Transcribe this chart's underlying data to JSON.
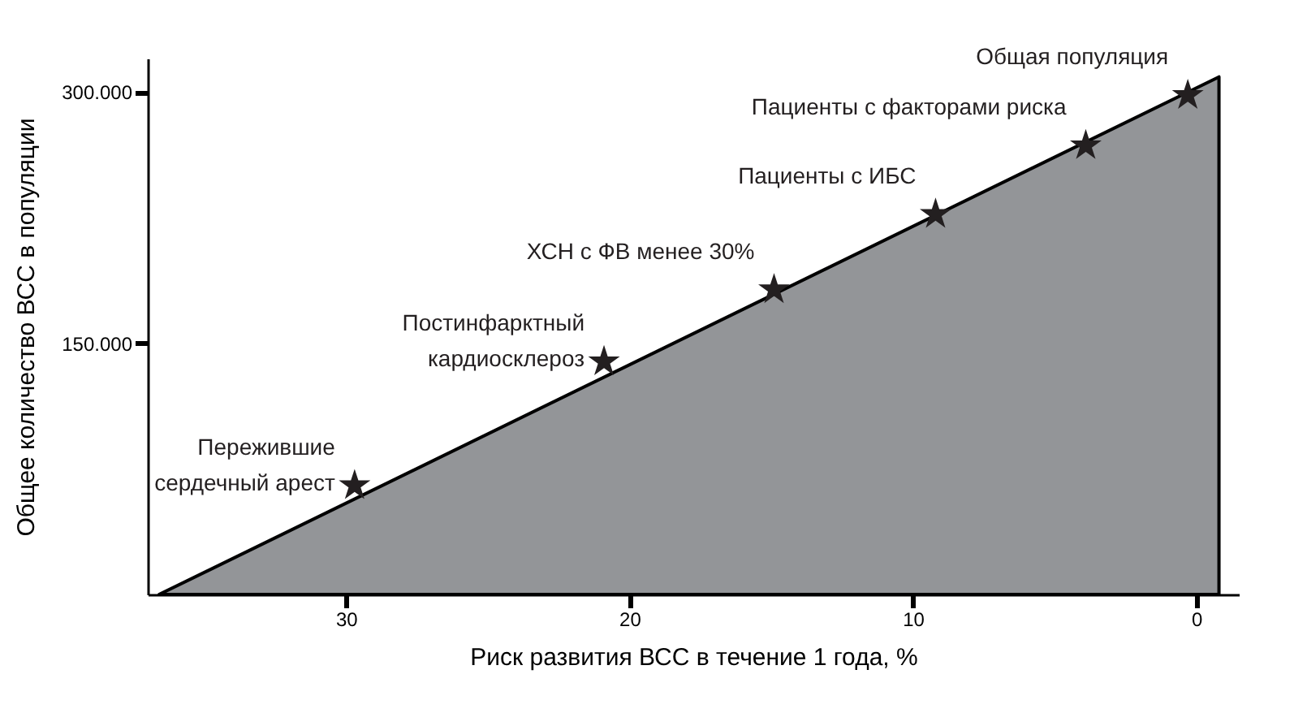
{
  "chart_data": {
    "type": "area",
    "xlabel": "Риск развития ВСС в течение 1 года, %",
    "ylabel": "Общее количество ВСС в популяции",
    "xlim": [
      37,
      -1.5
    ],
    "xticks": [
      30,
      20,
      10,
      0
    ],
    "ylim": [
      0,
      320000
    ],
    "yticks": [
      {
        "value": 150000,
        "label": "150.000"
      },
      {
        "value": 300000,
        "label": "300.000"
      }
    ],
    "grid": false,
    "series": [
      {
        "color": "#939598",
        "x": [
          36.6,
          -0.8
        ],
        "values": [
          0,
          309000
        ]
      },
      {
        "type": "scatter",
        "marker": "star",
        "color": "#231f20",
        "x": [
          29.7,
          20.9,
          14.9,
          9.2,
          3.9,
          0.3
        ],
        "values": [
          65000,
          139000,
          182000,
          227000,
          268000,
          298000
        ]
      }
    ],
    "annotations": [
      {
        "text": "Пережившие\nсердечный арест",
        "x": 29.7,
        "y": 65000
      },
      {
        "text": "Постинфарктный\nкардиосклероз",
        "x": 20.9,
        "y": 139000
      },
      {
        "text": "ХСН с ФВ менее 30%",
        "x": 14.9,
        "y": 182000
      },
      {
        "text": "Пациенты с ИБС",
        "x": 9.2,
        "y": 227000
      },
      {
        "text": "Пациенты с факторами риска",
        "x": 3.9,
        "y": 268000
      },
      {
        "text": "Общая популяция",
        "x": 0.3,
        "y": 298000
      }
    ]
  }
}
